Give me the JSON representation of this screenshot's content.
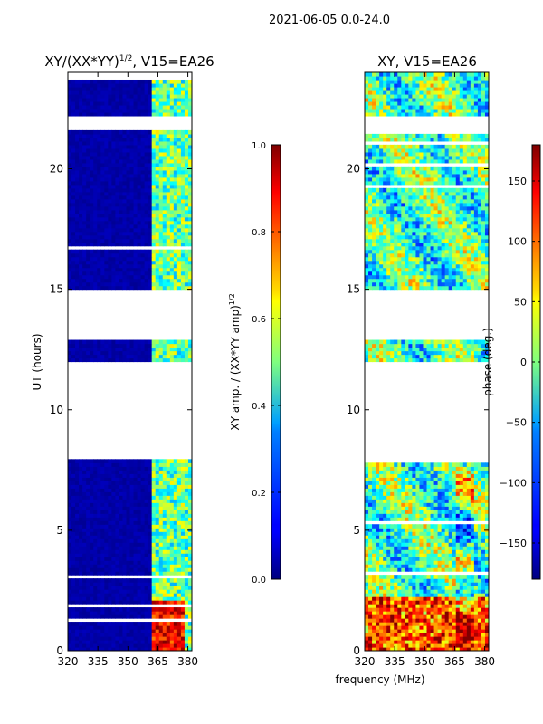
{
  "chart_data": {
    "type": "heatmap",
    "suptitle": "2021-06-05 0.0-24.0",
    "shared_xlabel": "frequency (MHz)",
    "panels": [
      {
        "title": "XY/(XX*YY)",
        "title_exponent": "1/2",
        "title_suffix": ", V15=EA26",
        "ylabel": "UT (hours)",
        "xlim": [
          320,
          382
        ],
        "ylim": [
          0,
          24
        ],
        "xticks": [
          "320",
          "335",
          "350",
          "365",
          "380"
        ],
        "yticks": [
          "0",
          "5",
          "10",
          "15",
          "20"
        ],
        "colorbar": {
          "label": "XY amp. / (XX*YY amp)",
          "label_exponent": "1/2",
          "range": [
            0.0,
            1.0
          ],
          "ticks": [
            "0.0",
            "0.2",
            "0.4",
            "0.6",
            "0.8",
            "1.0"
          ],
          "colormap": "jet"
        }
      },
      {
        "title": "XY, V15=EA26",
        "ylabel": "",
        "xlim": [
          320,
          382
        ],
        "ylim": [
          0,
          24
        ],
        "xticks": [
          "320",
          "335",
          "350",
          "365",
          "380"
        ],
        "yticks": [
          "0",
          "5",
          "10",
          "15",
          "20"
        ],
        "colorbar": {
          "label": "phase (deg.)",
          "range": [
            -180,
            180
          ],
          "ticks": [
            "−150",
            "−100",
            "−50",
            "0",
            "50",
            "100",
            "150"
          ],
          "colormap": "jet"
        }
      }
    ],
    "data_gaps_hours": [
      [
        8.0,
        12.0
      ],
      [
        12.9,
        15.0
      ],
      [
        21.6,
        22.2
      ]
    ],
    "notes": "Amplitude ratio is near 0 (dark blue) below ~362 MHz and ~0.4-0.6 (green/cyan) in 363-380 MHz bands; 0-2 h shows high ratio (~0.9) around 363-378 MHz. Phase is noisy across -180..180 deg."
  }
}
